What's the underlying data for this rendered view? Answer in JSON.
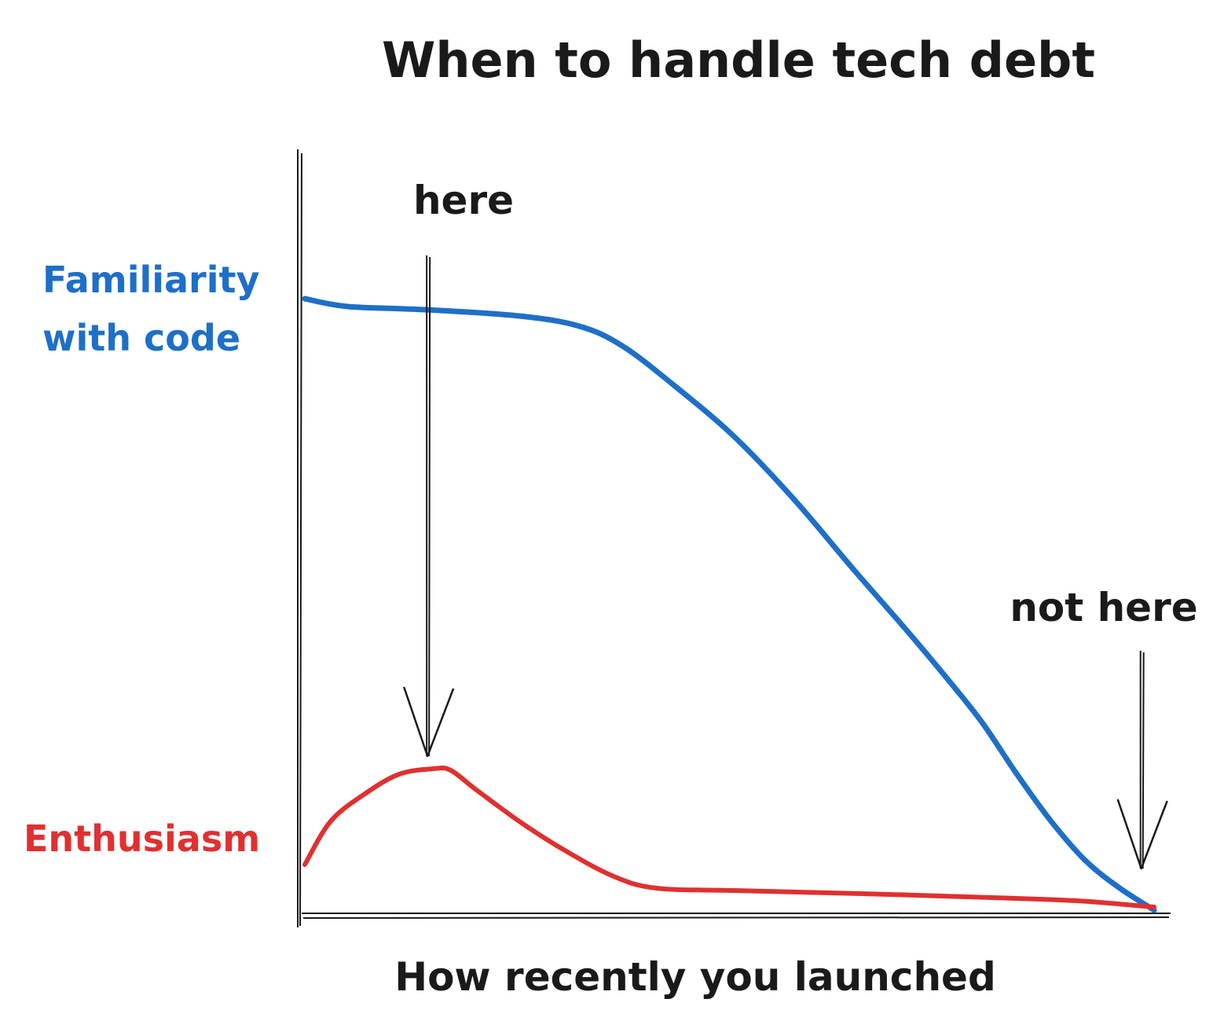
{
  "chart_data": {
    "type": "line",
    "title": "When to handle tech debt",
    "xlabel": "How recently you launched",
    "ylabel": "",
    "x_range": [
      0,
      100
    ],
    "y_range": [
      0,
      100
    ],
    "grid": false,
    "legend": "none; series are labeled directly to the left of the y-axis",
    "series": [
      {
        "name": "Familiarity with code",
        "label_lines": [
          "Familiarity",
          "with code"
        ],
        "color": "#1e6fc8",
        "x": [
          0,
          5,
          14,
          25,
          32,
          37,
          43,
          50,
          57,
          64,
          70,
          75,
          79,
          83,
          87,
          91,
          95,
          99
        ],
        "y": [
          78,
          77,
          76.6,
          75.8,
          74.5,
          72,
          67,
          60.5,
          52.5,
          43.5,
          36,
          29.5,
          24,
          17.5,
          11.5,
          6.5,
          3,
          0.2
        ]
      },
      {
        "name": "Enthusiasm",
        "label_lines": [
          "Enthusiasm"
        ],
        "color": "#e03030",
        "x": [
          0,
          3,
          7,
          11,
          15,
          17,
          20,
          25,
          30,
          36,
          41,
          50,
          65,
          80,
          90,
          99
        ],
        "y": [
          6,
          11.5,
          15,
          17.5,
          18.2,
          18,
          15.5,
          11.5,
          8,
          4.5,
          3,
          2.7,
          2.3,
          1.8,
          1.4,
          0.6
        ]
      }
    ],
    "annotations": [
      {
        "text": "here",
        "x": 14.3,
        "meaning": "arrow points down at the peak of the Enthusiasm curve"
      },
      {
        "text": "not here",
        "x": 97.5,
        "meaning": "arrow points down at the end of the curves"
      }
    ]
  },
  "style": {
    "axis_color": "#1a1a1a",
    "text_color": "#1a1a1a"
  }
}
